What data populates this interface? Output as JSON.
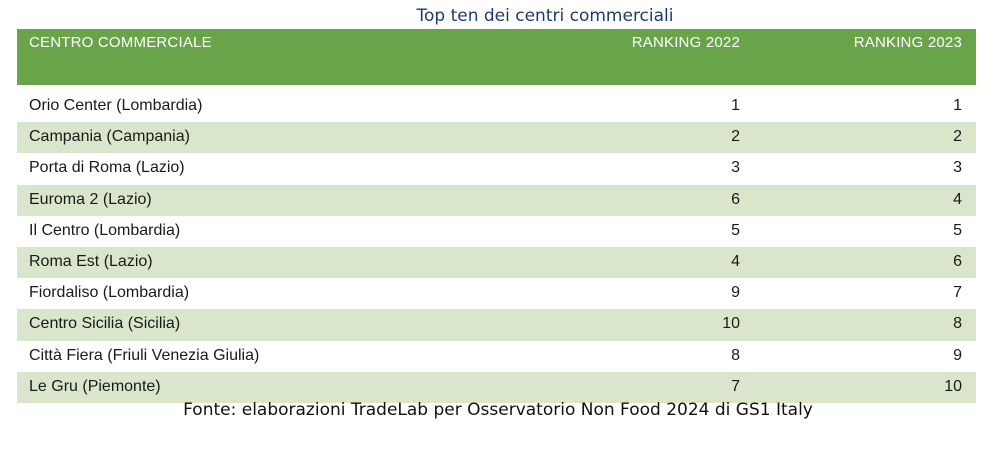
{
  "title": "Top ten dei centri commerciali",
  "table": {
    "columns": [
      "CENTRO COMMERCIALE",
      "RANKING 2022",
      "RANKING 2023"
    ],
    "rows": [
      {
        "name": "Orio Center (Lombardia)",
        "r2022": "1",
        "r2023": "1"
      },
      {
        "name": "Campania (Campania)",
        "r2022": "2",
        "r2023": "2"
      },
      {
        "name": "Porta di Roma (Lazio)",
        "r2022": "3",
        "r2023": "3"
      },
      {
        "name": "Euroma 2 (Lazio)",
        "r2022": "6",
        "r2023": "4"
      },
      {
        "name": "Il Centro (Lombardia)",
        "r2022": "5",
        "r2023": "5"
      },
      {
        "name": "Roma Est (Lazio)",
        "r2022": "4",
        "r2023": "6"
      },
      {
        "name": "Fiordaliso (Lombardia)",
        "r2022": "9",
        "r2023": "7"
      },
      {
        "name": "Centro Sicilia (Sicilia)",
        "r2022": "10",
        "r2023": "8"
      },
      {
        "name": "Città Fiera (Friuli Venezia Giulia)",
        "r2022": "8",
        "r2023": "9"
      },
      {
        "name": "Le Gru (Piemonte)",
        "r2022": "7",
        "r2023": "10"
      }
    ]
  },
  "source": "Fonte: elaborazioni TradeLab per Osservatorio Non Food 2024 di GS1 Italy",
  "colors": {
    "header_bg": "#6aa44a",
    "alt_row_bg": "#d9e6cc",
    "title_color": "#1f3a6d"
  }
}
